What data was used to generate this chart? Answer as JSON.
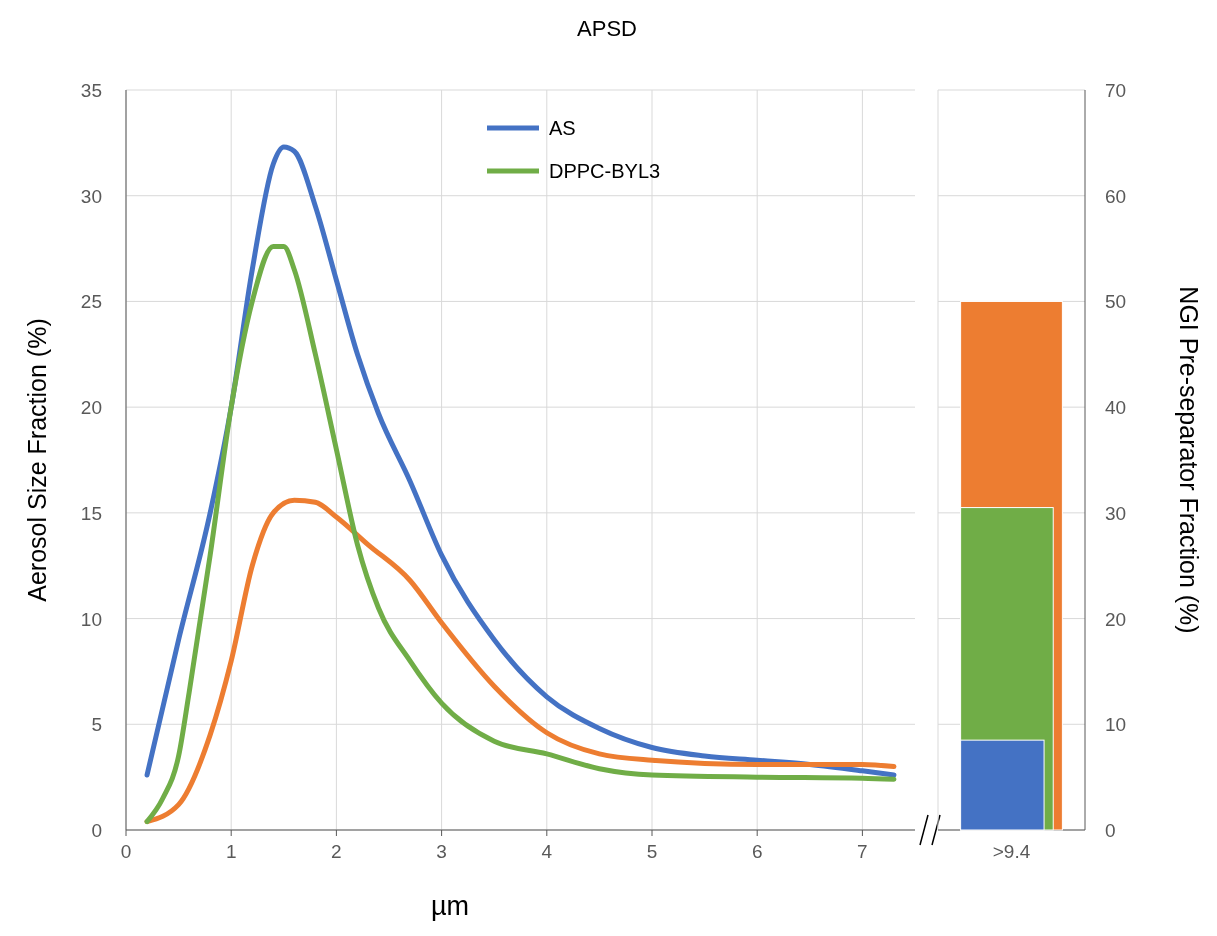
{
  "chart_data": [
    {
      "type": "line",
      "title": "APSD",
      "xlabel": "µm",
      "ylabel": "Aerosol Size Fraction (%)",
      "xlim": [
        0,
        7.5
      ],
      "xticks": [
        0,
        1,
        2,
        3,
        4,
        5,
        6,
        7
      ],
      "ylim": [
        0,
        35
      ],
      "yticks": [
        0,
        5,
        10,
        15,
        20,
        25,
        30,
        35
      ],
      "grid": true,
      "legend": "top",
      "marker": "none",
      "line_style": "solid",
      "series": [
        {
          "name": "AS",
          "color": "#4472c4",
          "x": [
            0.2,
            0.5,
            0.8,
            1.0,
            1.2,
            1.4,
            1.5,
            1.6,
            1.8,
            2.0,
            2.2,
            2.4,
            2.7,
            3.0,
            3.5,
            4.0,
            4.5,
            5.0,
            5.5,
            6.0,
            6.5,
            7.0,
            7.3
          ],
          "values": [
            2.6,
            9,
            15,
            20,
            26.5,
            31.5,
            32.3,
            32.1,
            29.5,
            26,
            22.5,
            19.7,
            16.5,
            13,
            9,
            6.3,
            4.8,
            3.9,
            3.5,
            3.3,
            3.1,
            2.8,
            2.6
          ]
        },
        {
          "color": "#ed7d31",
          "x": [
            0.2,
            0.5,
            0.8,
            1.0,
            1.2,
            1.4,
            1.6,
            1.8,
            2.0,
            2.3,
            2.7,
            3.0,
            3.5,
            4.0,
            4.5,
            5.0,
            6.0,
            7.0,
            7.3
          ],
          "values": [
            0.4,
            1.2,
            4.5,
            8,
            12.5,
            15,
            15.6,
            15.5,
            14.8,
            13.5,
            11.8,
            9.8,
            6.8,
            4.6,
            3.6,
            3.3,
            3.1,
            3.1,
            3.0
          ]
        },
        {
          "name": "DPPC-BYL3",
          "color": "#70ad47",
          "x": [
            0.2,
            0.35,
            0.5,
            0.6,
            0.8,
            1.0,
            1.2,
            1.4,
            1.5,
            1.6,
            1.8,
            2.0,
            2.2,
            2.4,
            2.7,
            3.0,
            3.5,
            4.0,
            4.5,
            5.0,
            6.0,
            7.0,
            7.3
          ],
          "values": [
            0.4,
            1.5,
            3.5,
            6.5,
            13,
            20,
            25,
            27.6,
            27.6,
            26.5,
            22.5,
            18,
            13.5,
            10.5,
            8,
            6,
            4.2,
            3.6,
            2.9,
            2.6,
            2.5,
            2.45,
            2.4
          ]
        }
      ]
    },
    {
      "type": "bar",
      "categories": [
        ">9.4"
      ],
      "y2label": "NGI Pre-separator Fraction (%)",
      "y2lim": [
        0,
        70
      ],
      "y2ticks": [
        0,
        10,
        20,
        30,
        40,
        50,
        60,
        70
      ],
      "grid": true,
      "series": [
        {
          "color": "#4472c4",
          "values": [
            8.5
          ],
          "axis": "y2"
        },
        {
          "color": "#ed7d31",
          "values": [
            50
          ],
          "axis": "y2"
        },
        {
          "color": "#70ad47",
          "values": [
            30.5
          ],
          "axis": "y2"
        }
      ]
    }
  ]
}
